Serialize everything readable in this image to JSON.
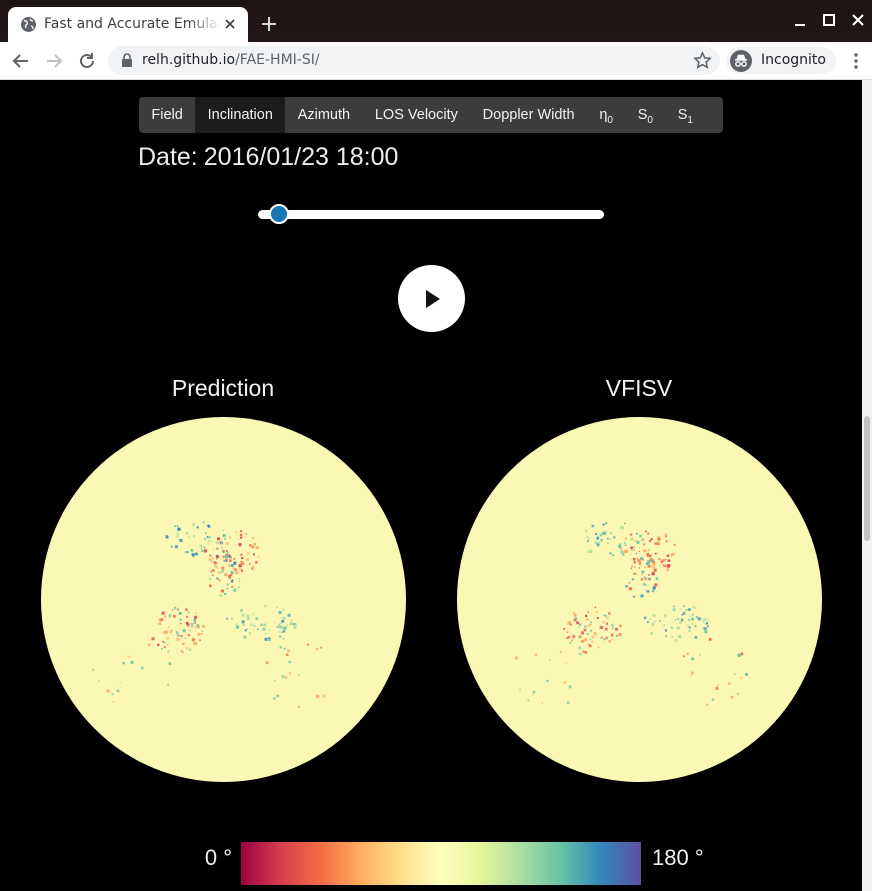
{
  "browser": {
    "tab_title": "Fast and Accurate Emulation",
    "url_host": "relh.github.io",
    "url_path": "/FAE-HMI-SI/",
    "profile_label": "Incognito"
  },
  "nav_tabs": [
    {
      "label": "Field",
      "sub": "",
      "active": false
    },
    {
      "label": "Inclination",
      "sub": "",
      "active": true
    },
    {
      "label": "Azimuth",
      "sub": "",
      "active": false
    },
    {
      "label": "LOS Velocity",
      "sub": "",
      "active": false
    },
    {
      "label": "Doppler Width",
      "sub": "",
      "active": false
    },
    {
      "label": "η",
      "sub": "0",
      "active": false
    },
    {
      "label": "S",
      "sub": "0",
      "active": false
    },
    {
      "label": "S",
      "sub": "1",
      "active": false
    }
  ],
  "date": {
    "label": "Date:",
    "value": "2016/01/23 18:00"
  },
  "time_slider": {
    "value_fraction": 0.06
  },
  "play_button": {
    "icon": "play-icon"
  },
  "panels": [
    {
      "title": "Prediction"
    },
    {
      "title": "VFISV"
    }
  ],
  "colorbar": {
    "min_label": "0 °",
    "max_label": "180 °",
    "colors": [
      "#9e0142",
      "#d53e4f",
      "#f46d43",
      "#fdae61",
      "#fee08b",
      "#ffffbf",
      "#e6f598",
      "#abdda4",
      "#66c2a5",
      "#3288bd",
      "#5e4fa2"
    ]
  },
  "colors": {
    "disk_background": "#fbf7b5",
    "accent": "#1678b4"
  }
}
